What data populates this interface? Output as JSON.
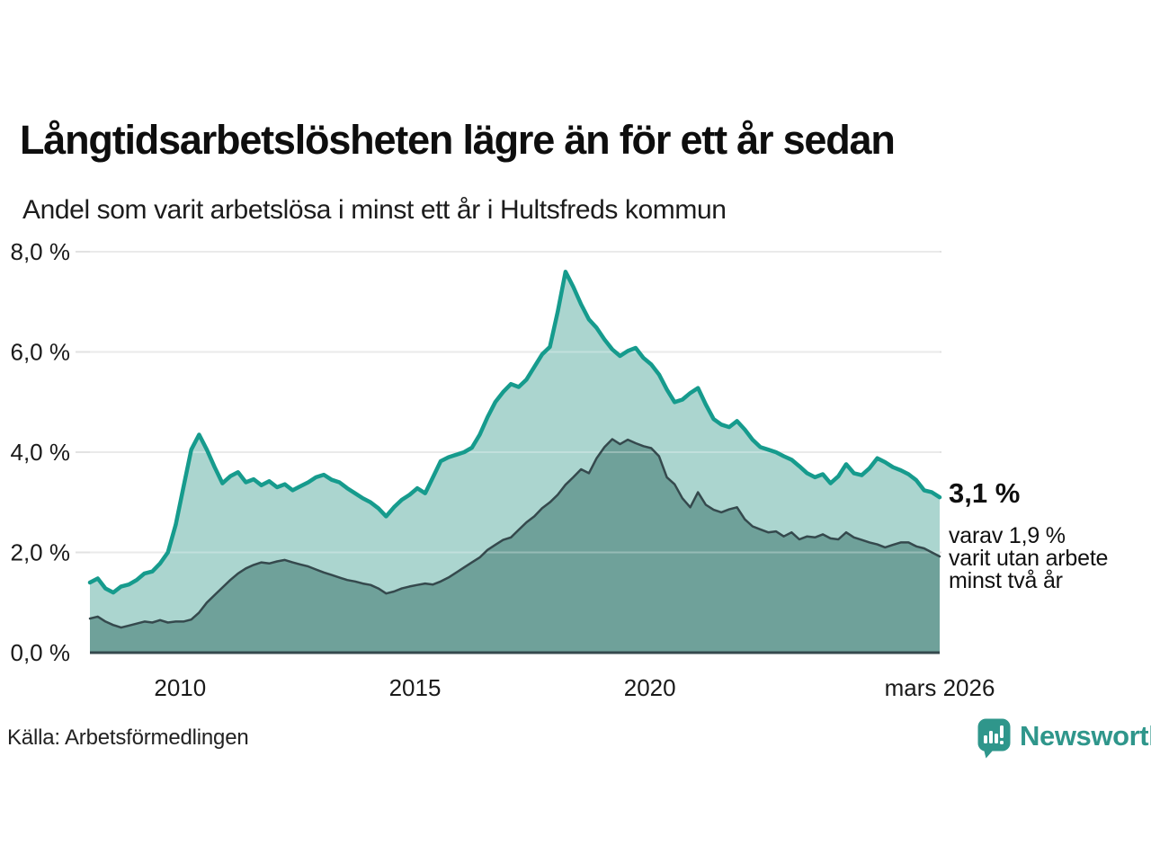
{
  "title": "Långtidsarbetslösheten lägre än för ett år sedan",
  "subtitle": "Andel som varit arbetslösa i minst ett år i Hultsfreds kommun",
  "source": "Källa: Arbetsförmedlingen",
  "branding": {
    "name": "Newsworthy",
    "color": "#2f968b"
  },
  "annotation": {
    "headline": "3,1 %",
    "lines": [
      "varav 1,9 %",
      "varit utan arbete",
      "minst två år"
    ]
  },
  "colors": {
    "accent_teal": "#169b8d",
    "fill_light": "#abd5cf",
    "fill_dark": "#6fa19a",
    "line_dark": "#35494d",
    "grid": "#e2e2e2",
    "grid_over_fill": "rgba(255,255,255,0.28)",
    "axis_text": "#1a1a1a"
  },
  "chart_data": {
    "type": "area",
    "title": "Långtidsarbetslösheten lägre än för ett år sedan",
    "xlabel": "",
    "ylabel": "",
    "xlim": [
      2008.08,
      2026.17
    ],
    "ylim": [
      0,
      8
    ],
    "grid": true,
    "legend_position": "none",
    "x_ticks": [
      {
        "x": 2010,
        "label": "2010"
      },
      {
        "x": 2015,
        "label": "2015"
      },
      {
        "x": 2020,
        "label": "2020"
      },
      {
        "x": 2026.17,
        "label": "mars 2026"
      }
    ],
    "y_ticks": [
      {
        "v": 8,
        "label": "8,0 %"
      },
      {
        "v": 6,
        "label": "6,0 %"
      },
      {
        "v": 4,
        "label": "4,0 %"
      },
      {
        "v": 2,
        "label": "2,0 %"
      },
      {
        "v": 0,
        "label": "0,0 %"
      }
    ],
    "series": [
      {
        "id": "minst-ett-ar",
        "label": "minst ett år",
        "end_value_label": "3,1 %",
        "line_color": "#169b8d",
        "fill_color": "#abd5cf",
        "line_width": 4.5,
        "values": [
          1.4,
          1.48,
          1.28,
          1.2,
          1.32,
          1.36,
          1.45,
          1.58,
          1.62,
          1.78,
          2.0,
          2.55,
          3.3,
          4.05,
          4.35,
          4.05,
          3.7,
          3.38,
          3.52,
          3.6,
          3.4,
          3.46,
          3.34,
          3.42,
          3.3,
          3.36,
          3.24,
          3.32,
          3.4,
          3.5,
          3.55,
          3.45,
          3.4,
          3.28,
          3.18,
          3.08,
          3.0,
          2.88,
          2.72,
          2.9,
          3.05,
          3.15,
          3.28,
          3.18,
          3.5,
          3.82,
          3.9,
          3.95,
          4.0,
          4.09,
          4.35,
          4.7,
          5.0,
          5.2,
          5.36,
          5.3,
          5.45,
          5.7,
          5.95,
          6.1,
          6.8,
          7.6,
          7.3,
          6.95,
          6.65,
          6.48,
          6.25,
          6.05,
          5.92,
          6.02,
          6.08,
          5.88,
          5.75,
          5.55,
          5.25,
          5.0,
          5.05,
          5.18,
          5.28,
          4.95,
          4.66,
          4.55,
          4.5,
          4.62,
          4.45,
          4.25,
          4.1,
          4.05,
          4.0,
          3.92,
          3.85,
          3.72,
          3.58,
          3.5,
          3.56,
          3.38,
          3.52,
          3.76,
          3.58,
          3.54,
          3.68,
          3.88,
          3.8,
          3.7,
          3.64,
          3.56,
          3.44,
          3.24,
          3.2,
          3.1
        ]
      },
      {
        "id": "minst-tva-ar",
        "label": "minst två år",
        "end_value_label": "1,9 %",
        "line_color": "#35494d",
        "fill_color": "#6fa19a",
        "line_width": 2.5,
        "values": [
          0.68,
          0.72,
          0.62,
          0.55,
          0.5,
          0.54,
          0.58,
          0.62,
          0.6,
          0.65,
          0.6,
          0.62,
          0.62,
          0.66,
          0.8,
          1.0,
          1.15,
          1.3,
          1.45,
          1.58,
          1.68,
          1.75,
          1.8,
          1.78,
          1.82,
          1.85,
          1.8,
          1.76,
          1.72,
          1.66,
          1.6,
          1.55,
          1.5,
          1.45,
          1.42,
          1.38,
          1.35,
          1.28,
          1.18,
          1.22,
          1.28,
          1.32,
          1.35,
          1.38,
          1.36,
          1.42,
          1.5,
          1.6,
          1.7,
          1.8,
          1.9,
          2.05,
          2.15,
          2.25,
          2.3,
          2.45,
          2.6,
          2.72,
          2.88,
          3.0,
          3.15,
          3.35,
          3.5,
          3.66,
          3.58,
          3.88,
          4.1,
          4.26,
          4.16,
          4.25,
          4.18,
          4.12,
          4.08,
          3.92,
          3.5,
          3.36,
          3.08,
          2.9,
          3.2,
          2.95,
          2.85,
          2.8,
          2.86,
          2.9,
          2.66,
          2.52,
          2.46,
          2.4,
          2.42,
          2.32,
          2.4,
          2.26,
          2.32,
          2.3,
          2.36,
          2.28,
          2.26,
          2.4,
          2.3,
          2.25,
          2.2,
          2.16,
          2.1,
          2.15,
          2.2,
          2.2,
          2.12,
          2.08,
          2.0,
          1.92
        ]
      }
    ]
  }
}
